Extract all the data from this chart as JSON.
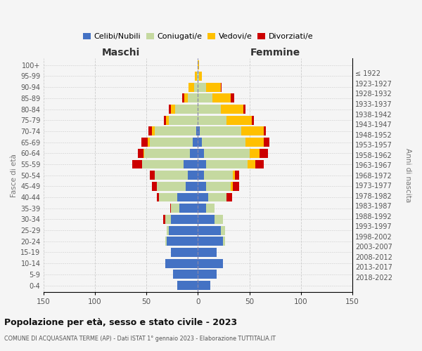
{
  "age_groups": [
    "0-4",
    "5-9",
    "10-14",
    "15-19",
    "20-24",
    "25-29",
    "30-34",
    "35-39",
    "40-44",
    "45-49",
    "50-54",
    "55-59",
    "60-64",
    "65-69",
    "70-74",
    "75-79",
    "80-84",
    "85-89",
    "90-94",
    "95-99",
    "100+"
  ],
  "birth_years": [
    "2018-2022",
    "2013-2017",
    "2008-2012",
    "2003-2007",
    "1998-2002",
    "1993-1997",
    "1988-1992",
    "1983-1987",
    "1978-1982",
    "1973-1977",
    "1968-1972",
    "1963-1967",
    "1958-1962",
    "1953-1957",
    "1948-1952",
    "1943-1947",
    "1938-1942",
    "1933-1937",
    "1928-1932",
    "1923-1927",
    "≤ 1922"
  ],
  "male": {
    "celibi": [
      20,
      24,
      32,
      26,
      30,
      28,
      26,
      18,
      20,
      12,
      10,
      14,
      8,
      5,
      2,
      0,
      0,
      0,
      0,
      0,
      0
    ],
    "coniugati": [
      0,
      0,
      0,
      0,
      2,
      2,
      6,
      8,
      18,
      28,
      32,
      40,
      44,
      42,
      40,
      28,
      22,
      10,
      4,
      1,
      0
    ],
    "vedovi": [
      0,
      0,
      0,
      0,
      0,
      0,
      0,
      0,
      0,
      0,
      0,
      0,
      1,
      2,
      3,
      3,
      4,
      3,
      5,
      2,
      0
    ],
    "divorziati": [
      0,
      0,
      0,
      0,
      0,
      0,
      2,
      1,
      2,
      5,
      5,
      10,
      5,
      6,
      3,
      2,
      2,
      2,
      0,
      0,
      0
    ]
  },
  "female": {
    "nubili": [
      12,
      18,
      24,
      18,
      24,
      22,
      16,
      8,
      10,
      8,
      6,
      8,
      6,
      4,
      2,
      0,
      0,
      0,
      0,
      0,
      0
    ],
    "coniugate": [
      0,
      0,
      0,
      0,
      2,
      4,
      8,
      8,
      18,
      24,
      28,
      40,
      44,
      42,
      40,
      28,
      22,
      14,
      8,
      1,
      0
    ],
    "vedove": [
      0,
      0,
      0,
      0,
      0,
      0,
      0,
      0,
      0,
      2,
      2,
      8,
      10,
      18,
      22,
      24,
      22,
      18,
      14,
      3,
      1
    ],
    "divorziate": [
      0,
      0,
      0,
      0,
      0,
      0,
      0,
      0,
      5,
      6,
      4,
      8,
      8,
      5,
      2,
      2,
      2,
      3,
      1,
      0,
      0
    ]
  },
  "colors": {
    "celibi": "#4472c4",
    "coniugati": "#c5d9a0",
    "vedovi": "#ffc000",
    "divorziati": "#cc0000"
  },
  "title": "Popolazione per età, sesso e stato civile - 2023",
  "subtitle": "COMUNE DI ACQUASANTA TERME (AP) - Dati ISTAT 1° gennaio 2023 - Elaborazione TUTTITALIA.IT",
  "xlabel_left": "Maschi",
  "xlabel_right": "Femmine",
  "ylabel_left": "Fasce di età",
  "ylabel_right": "Anni di nascita",
  "xlim": 150,
  "background_color": "#f5f5f5",
  "grid_color": "#cccccc"
}
